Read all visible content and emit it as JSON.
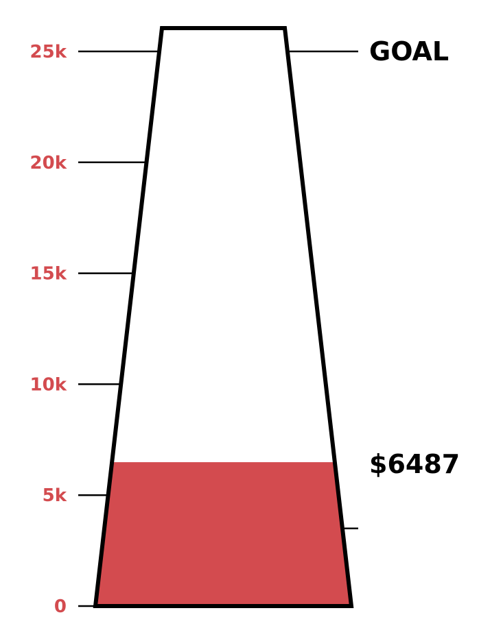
{
  "colors": {
    "fill": "#d34b4f",
    "tick_text": "#d34b4f",
    "outline": "#000000",
    "label_text": "#000000"
  },
  "chart_data": {
    "type": "thermometer",
    "title": "",
    "xlabel": "",
    "ylabel": "",
    "ylim": [
      0,
      25000
    ],
    "ticks": [
      {
        "value": 0,
        "label": "0"
      },
      {
        "value": 5000,
        "label": "5k"
      },
      {
        "value": 10000,
        "label": "10k"
      },
      {
        "value": 15000,
        "label": "15k"
      },
      {
        "value": 20000,
        "label": "20k"
      },
      {
        "value": 25000,
        "label": "25k"
      }
    ],
    "goal": {
      "value": 25000,
      "label": "GOAL"
    },
    "current": {
      "value": 6487,
      "label": "$6487"
    },
    "marker_value": 3500
  }
}
